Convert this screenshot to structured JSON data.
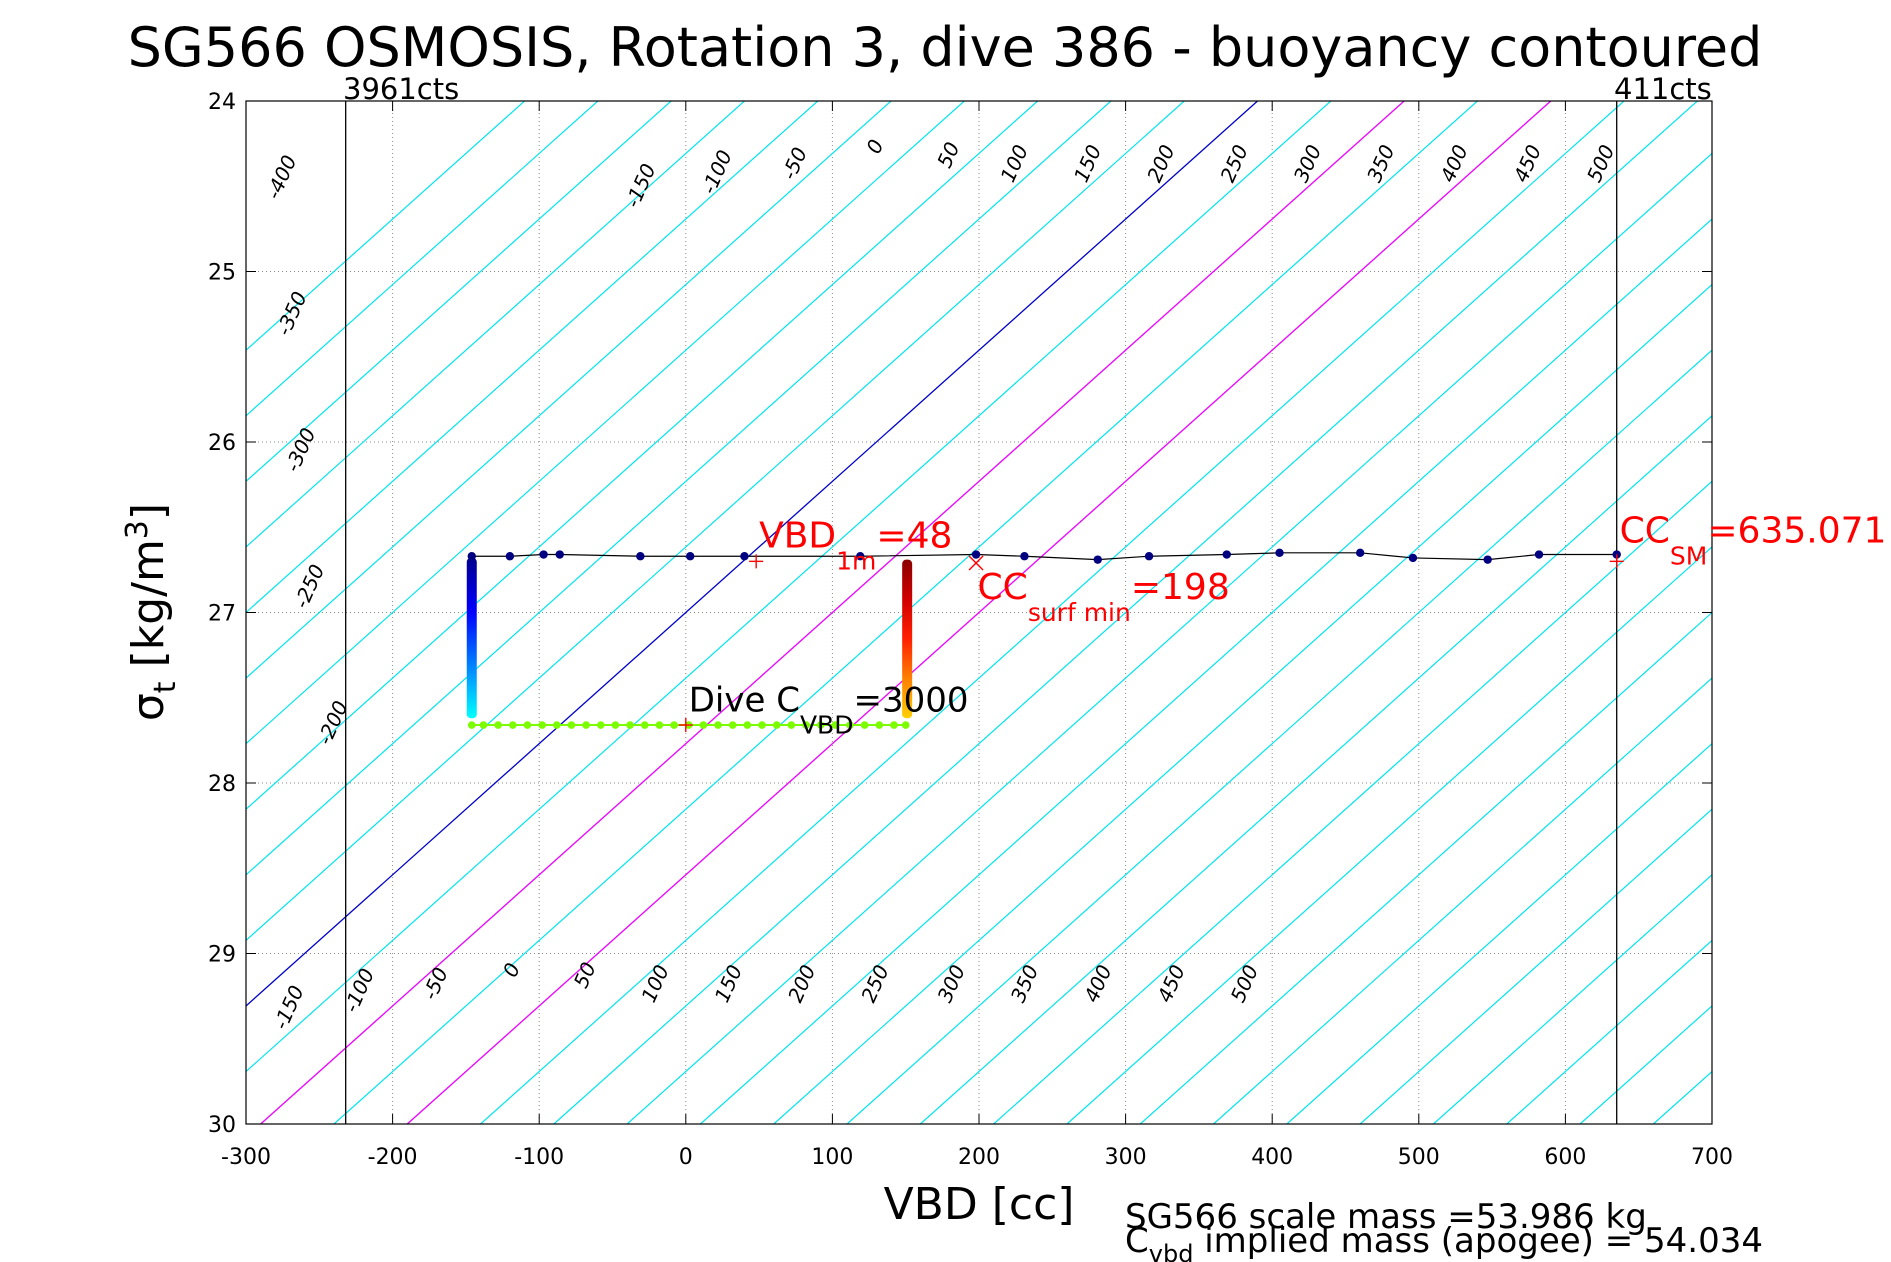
{
  "chart_data": {
    "type": "scatter",
    "title": "SG566 OSMOSIS, Rotation 3, dive 386 - buoyancy contoured",
    "xlabel": "VBD [cc]",
    "ylabel": {
      "main": "σ",
      "sub": "t",
      "rest": " [kg/m",
      "sup": "3",
      "close": "]"
    },
    "xlim": [
      -300,
      700
    ],
    "ylim": [
      24,
      30
    ],
    "y_reversed": true,
    "grid": true,
    "xticks": [
      "-300",
      "-200",
      "-100",
      "0",
      "100",
      "200",
      "300",
      "400",
      "500",
      "600",
      "700"
    ],
    "yticks": [
      "24",
      "25",
      "26",
      "27",
      "28",
      "29",
      "30"
    ],
    "counts_top": [
      {
        "x": -232,
        "label": "3961cts"
      },
      {
        "x": 635,
        "label": "411cts"
      }
    ],
    "contours": {
      "slope_cc_per_sigma": -130,
      "cyan_levels": [
        -500,
        -450,
        -400,
        -350,
        -300,
        -250,
        -200,
        -150,
        -100,
        -50,
        50,
        100,
        150,
        200,
        250,
        300,
        350,
        400,
        450,
        500,
        550,
        600,
        650,
        700,
        750,
        800,
        850,
        900,
        950,
        1000,
        1050,
        1100
      ],
      "zero_level": 0,
      "magenta_levels": [
        100,
        200
      ],
      "colors": {
        "cyan": "#00e5ee",
        "zero": "#0000cc",
        "magenta": "#ff00ff"
      },
      "top_labels": [
        {
          "text": "-400",
          "x": -275,
          "y": 24.45
        },
        {
          "text": "-350",
          "x": -268,
          "y": 25.25
        },
        {
          "text": "-300",
          "x": -262,
          "y": 26.05
        },
        {
          "text": "-250",
          "x": -256,
          "y": 26.85
        },
        {
          "text": "-200",
          "x": -240,
          "y": 27.65
        },
        {
          "text": "-150",
          "x": -30,
          "y": 24.5
        },
        {
          "text": "-100",
          "x": 22,
          "y": 24.42
        },
        {
          "text": "-50",
          "x": 75,
          "y": 24.37
        },
        {
          "text": "0",
          "x": 130,
          "y": 24.27
        },
        {
          "text": "50",
          "x": 180,
          "y": 24.32
        },
        {
          "text": "100",
          "x": 225,
          "y": 24.37
        },
        {
          "text": "150",
          "x": 275,
          "y": 24.37
        },
        {
          "text": "200",
          "x": 325,
          "y": 24.37
        },
        {
          "text": "250",
          "x": 375,
          "y": 24.37
        },
        {
          "text": "300",
          "x": 425,
          "y": 24.37
        },
        {
          "text": "350",
          "x": 475,
          "y": 24.37
        },
        {
          "text": "400",
          "x": 525,
          "y": 24.37
        },
        {
          "text": "450",
          "x": 575,
          "y": 24.37
        },
        {
          "text": "500",
          "x": 625,
          "y": 24.37
        }
      ],
      "bottom_labels": [
        {
          "text": "-150",
          "x": -270,
          "y": 29.32
        },
        {
          "text": "-100",
          "x": -222,
          "y": 29.22
        },
        {
          "text": "-50",
          "x": -170,
          "y": 29.18
        },
        {
          "text": "0",
          "x": -118,
          "y": 29.1
        },
        {
          "text": "50",
          "x": -68,
          "y": 29.13
        },
        {
          "text": "100",
          "x": -20,
          "y": 29.18
        },
        {
          "text": "150",
          "x": 30,
          "y": 29.18
        },
        {
          "text": "200",
          "x": 80,
          "y": 29.18
        },
        {
          "text": "250",
          "x": 130,
          "y": 29.18
        },
        {
          "text": "300",
          "x": 182,
          "y": 29.18
        },
        {
          "text": "350",
          "x": 232,
          "y": 29.18
        },
        {
          "text": "400",
          "x": 282,
          "y": 29.18
        },
        {
          "text": "450",
          "x": 332,
          "y": 29.18
        },
        {
          "text": "500",
          "x": 382,
          "y": 29.18
        }
      ]
    },
    "series": [
      {
        "name": "",
        "kind": "line+markers",
        "color": "#000080",
        "points": [
          [
            -146,
            26.67
          ],
          [
            -120,
            26.67
          ],
          [
            -97,
            26.66
          ],
          [
            -86,
            26.66
          ],
          [
            -31,
            26.67
          ],
          [
            3,
            26.67
          ],
          [
            40,
            26.67
          ],
          [
            119,
            26.67
          ],
          [
            198,
            26.66
          ],
          [
            231,
            26.67
          ],
          [
            281,
            26.69
          ],
          [
            316,
            26.67
          ],
          [
            369,
            26.66
          ],
          [
            405,
            26.65
          ],
          [
            460,
            26.65
          ],
          [
            496,
            26.68
          ],
          [
            547,
            26.69
          ],
          [
            582,
            26.66
          ],
          [
            635,
            26.66
          ]
        ]
      },
      {
        "name": "",
        "kind": "markers",
        "color": "#7cfc00",
        "points": [
          [
            -146,
            27.66
          ],
          [
            -138,
            27.66
          ],
          [
            -128,
            27.66
          ],
          [
            -118,
            27.66
          ],
          [
            -108,
            27.66
          ],
          [
            -98,
            27.66
          ],
          [
            -88,
            27.66
          ],
          [
            -78,
            27.66
          ],
          [
            -68,
            27.66
          ],
          [
            -58,
            27.66
          ],
          [
            -48,
            27.66
          ],
          [
            -38,
            27.66
          ],
          [
            -28,
            27.66
          ],
          [
            -18,
            27.66
          ],
          [
            -8,
            27.66
          ],
          [
            2,
            27.66
          ],
          [
            12,
            27.66
          ],
          [
            22,
            27.66
          ],
          [
            32,
            27.66
          ],
          [
            42,
            27.66
          ],
          [
            52,
            27.66
          ],
          [
            62,
            27.66
          ],
          [
            72,
            27.66
          ],
          [
            82,
            27.66
          ],
          [
            92,
            27.66
          ],
          [
            102,
            27.66
          ],
          [
            112,
            27.66
          ],
          [
            122,
            27.66
          ],
          [
            132,
            27.66
          ],
          [
            142,
            27.66
          ],
          [
            150,
            27.66
          ]
        ]
      }
    ],
    "descent_colored": {
      "x": -146,
      "y_from": 26.68,
      "y_to": 27.62,
      "colormap": "jet-cold",
      "stops": [
        "#00008f",
        "#0000ff",
        "#0080ff",
        "#00ffff"
      ]
    },
    "ascent_colored": {
      "x": 151,
      "y_from": 27.62,
      "y_to": 26.69,
      "colormap": "jet-hot",
      "stops": [
        "#ffd000",
        "#ff8000",
        "#ff2000",
        "#d00000",
        "#8b0000"
      ]
    },
    "vertical_lines": [
      {
        "x": -232,
        "color": "#000000"
      },
      {
        "x": 635,
        "color": "#000000"
      }
    ],
    "markers": [
      {
        "x": 48,
        "y": 26.7,
        "symbol": "+",
        "color": "#ff0000"
      },
      {
        "x": 198,
        "y": 26.71,
        "symbol": "x",
        "color": "#ff0000"
      },
      {
        "x": 635,
        "y": 26.7,
        "symbol": "+",
        "color": "#ff0000"
      },
      {
        "x": 0,
        "y": 27.66,
        "symbol": "+",
        "color": "#ff0000"
      }
    ],
    "annotations": {
      "vbd_1m": {
        "main": "VBD",
        "sub": "1m",
        "rest": "=48",
        "color": "#ff0000",
        "x": 50,
        "y": 26.62
      },
      "cc_surf_min": {
        "main": "CC",
        "sub": "surf min",
        "rest": "=198",
        "color": "#ff0000",
        "x": 199,
        "y": 26.92
      },
      "cc_sm": {
        "main": "CC",
        "sub": "SM",
        "rest": "=635.071",
        "color": "#ff0000",
        "x": 637,
        "y": 26.59
      },
      "dive_c_vbd": {
        "main": "Dive C",
        "sub": "VBD",
        "rest": "=3000",
        "color": "#000000",
        "x": 2,
        "y": 27.58
      }
    },
    "footer": {
      "line1": "SG566 scale mass =53.986 kg",
      "line2_main": "C",
      "line2_sub": "vbd",
      "line2_rest": " implied mass (apogee) = 54.034"
    }
  }
}
